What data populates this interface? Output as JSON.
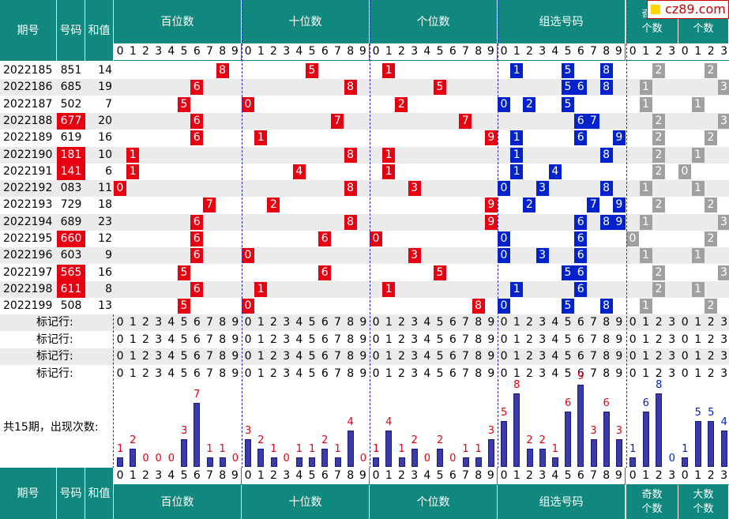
{
  "header": {
    "period": "期号",
    "number": "号码",
    "sum": "和值",
    "groups": [
      "百位数",
      "十位数",
      "个位数",
      "组选号码"
    ],
    "odd_count": "奇数\n个数",
    "big_count": "大数\n个数",
    "digits10": [
      "0",
      "1",
      "2",
      "3",
      "4",
      "5",
      "6",
      "7",
      "8",
      "9"
    ],
    "digits4": [
      "0",
      "1",
      "2",
      "3"
    ]
  },
  "logo": "cz89.com",
  "rows": [
    {
      "period": "2022185",
      "number": "851",
      "sum": "14",
      "hl": false,
      "hundreds": 8,
      "tens": 5,
      "ones": 1,
      "group": [
        1,
        5,
        8
      ],
      "odd": 2,
      "big": 2
    },
    {
      "period": "2022186",
      "number": "685",
      "sum": "19",
      "hl": false,
      "hundreds": 6,
      "tens": 8,
      "ones": 5,
      "group": [
        5,
        6,
        8
      ],
      "odd": 1,
      "big": 3
    },
    {
      "period": "2022187",
      "number": "502",
      "sum": "7",
      "hl": false,
      "hundreds": 5,
      "tens": 0,
      "ones": 2,
      "group": [
        0,
        2,
        5
      ],
      "odd": 1,
      "big": 1
    },
    {
      "period": "2022188",
      "number": "677",
      "sum": "20",
      "hl": true,
      "hundreds": 6,
      "tens": 7,
      "ones": 7,
      "group": [
        6,
        7
      ],
      "odd": 2,
      "big": 3
    },
    {
      "period": "2022189",
      "number": "619",
      "sum": "16",
      "hl": false,
      "hundreds": 6,
      "tens": 1,
      "ones": 9,
      "group": [
        1,
        6,
        9
      ],
      "odd": 2,
      "big": 2
    },
    {
      "period": "2022190",
      "number": "181",
      "sum": "10",
      "hl": true,
      "hundreds": 1,
      "tens": 8,
      "ones": 1,
      "group": [
        1,
        8
      ],
      "odd": 2,
      "big": 1
    },
    {
      "period": "2022191",
      "number": "141",
      "sum": "6",
      "hl": true,
      "hundreds": 1,
      "tens": 4,
      "ones": 1,
      "group": [
        1,
        4
      ],
      "odd": 2,
      "big": 0
    },
    {
      "period": "2022192",
      "number": "083",
      "sum": "11",
      "hl": false,
      "hundreds": 0,
      "tens": 8,
      "ones": 3,
      "group": [
        0,
        3,
        8
      ],
      "odd": 1,
      "big": 1
    },
    {
      "period": "2022193",
      "number": "729",
      "sum": "18",
      "hl": false,
      "hundreds": 7,
      "tens": 2,
      "ones": 9,
      "group": [
        2,
        7,
        9
      ],
      "odd": 2,
      "big": 2
    },
    {
      "period": "2022194",
      "number": "689",
      "sum": "23",
      "hl": false,
      "hundreds": 6,
      "tens": 8,
      "ones": 9,
      "group": [
        6,
        8,
        9
      ],
      "odd": 1,
      "big": 3
    },
    {
      "period": "2022195",
      "number": "660",
      "sum": "12",
      "hl": true,
      "hundreds": 6,
      "tens": 6,
      "ones": 0,
      "group": [
        0,
        6
      ],
      "odd": 0,
      "big": 2
    },
    {
      "period": "2022196",
      "number": "603",
      "sum": "9",
      "hl": false,
      "hundreds": 6,
      "tens": 0,
      "ones": 3,
      "group": [
        0,
        3,
        6
      ],
      "odd": 1,
      "big": 1
    },
    {
      "period": "2022197",
      "number": "565",
      "sum": "16",
      "hl": true,
      "hundreds": 5,
      "tens": 6,
      "ones": 5,
      "group": [
        5,
        6
      ],
      "odd": 2,
      "big": 3
    },
    {
      "period": "2022198",
      "number": "611",
      "sum": "8",
      "hl": true,
      "hundreds": 6,
      "tens": 1,
      "ones": 1,
      "group": [
        1,
        6
      ],
      "odd": 2,
      "big": 1
    },
    {
      "period": "2022199",
      "number": "508",
      "sum": "13",
      "hl": false,
      "hundreds": 5,
      "tens": 0,
      "ones": 8,
      "group": [
        0,
        5,
        8
      ],
      "odd": 1,
      "big": 2
    }
  ],
  "marker_label": "标记行:",
  "marker_rows": 4,
  "stats_label": "共15期，出现次数:",
  "chart_data": {
    "type": "bar",
    "title": "",
    "sections": [
      {
        "name": "百位数",
        "categories": [
          "0",
          "1",
          "2",
          "3",
          "4",
          "5",
          "6",
          "7",
          "8",
          "9"
        ],
        "values": [
          1,
          2,
          0,
          0,
          0,
          3,
          7,
          1,
          1,
          0
        ]
      },
      {
        "name": "十位数",
        "categories": [
          "0",
          "1",
          "2",
          "3",
          "4",
          "5",
          "6",
          "7",
          "8",
          "9"
        ],
        "values": [
          3,
          2,
          1,
          0,
          1,
          1,
          2,
          1,
          4,
          0
        ]
      },
      {
        "name": "个位数",
        "categories": [
          "0",
          "1",
          "2",
          "3",
          "4",
          "5",
          "6",
          "7",
          "8",
          "9"
        ],
        "values": [
          1,
          4,
          1,
          2,
          0,
          2,
          0,
          1,
          1,
          3
        ]
      },
      {
        "name": "组选号码",
        "categories": [
          "0",
          "1",
          "2",
          "3",
          "4",
          "5",
          "6",
          "7",
          "8",
          "9"
        ],
        "values": [
          5,
          8,
          2,
          2,
          1,
          6,
          9,
          3,
          6,
          3
        ]
      },
      {
        "name": "奇数个数",
        "categories": [
          "0",
          "1",
          "2",
          "3"
        ],
        "values": [
          1,
          6,
          8,
          0
        ]
      },
      {
        "name": "大数个数",
        "categories": [
          "0",
          "1",
          "2",
          "3"
        ],
        "values": [
          1,
          5,
          5,
          4
        ]
      }
    ]
  },
  "colors": {
    "header": "#11887e",
    "red": "#e60012",
    "blue": "#0022cc",
    "gray": "#a0a0a0",
    "bar": "#3a3aa8"
  }
}
